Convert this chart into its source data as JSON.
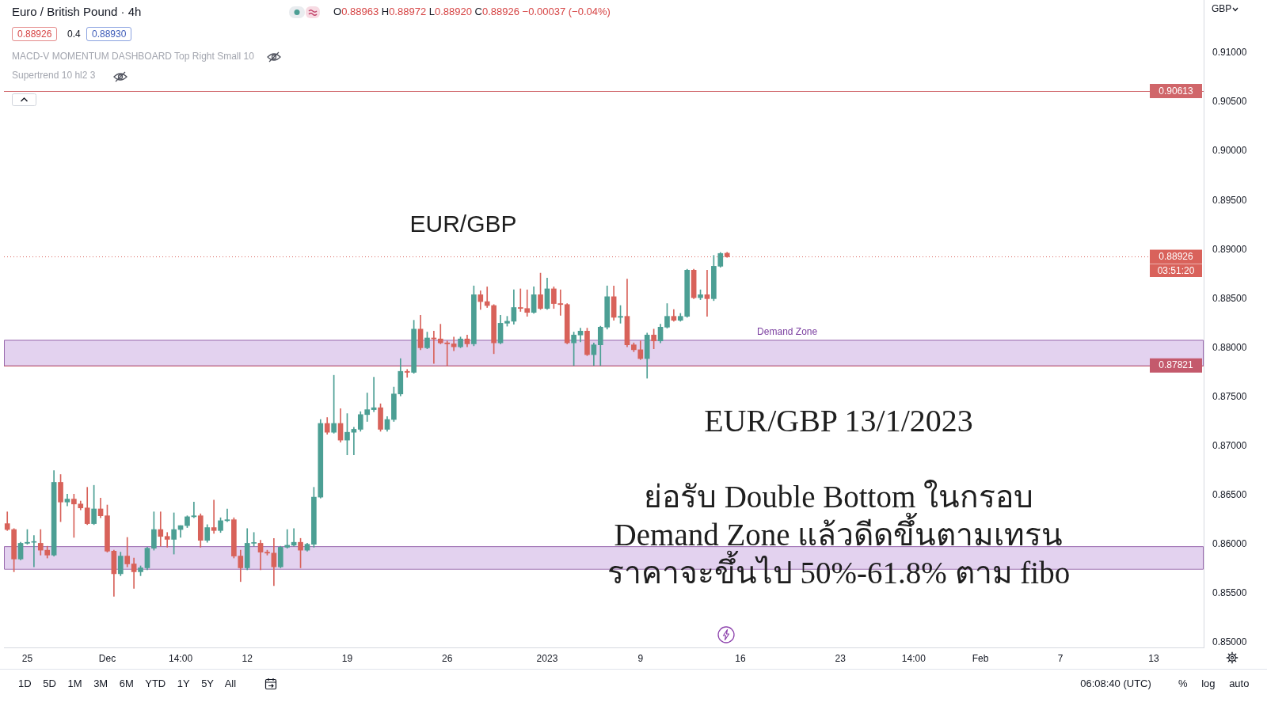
{
  "chart_data": {
    "type": "candlestick",
    "title": "Euro / British Pound · 4h",
    "categories": [
      null,
      null,
      null,
      "25",
      null,
      null,
      null,
      null,
      null,
      null,
      null,
      null,
      null,
      null,
      null,
      "Dec",
      null,
      null,
      null,
      null,
      null,
      null,
      null,
      null,
      null,
      null,
      "14:00",
      null,
      null,
      null,
      null,
      null,
      null,
      null,
      null,
      null,
      "12",
      null,
      null,
      null,
      null,
      null,
      null,
      null,
      null,
      null,
      null,
      null,
      null,
      null,
      null,
      "19",
      null,
      null,
      null,
      null,
      null,
      null,
      null,
      null,
      null,
      null,
      null,
      null,
      null,
      null,
      "26",
      null,
      null,
      null,
      null,
      null,
      null,
      null,
      null,
      null,
      null,
      null,
      null,
      null,
      null,
      "2023",
      null,
      null,
      null,
      null,
      null,
      null,
      null,
      null,
      null,
      null,
      null,
      null,
      null,
      "9",
      null,
      null,
      null,
      null,
      null,
      null,
      null,
      null,
      null,
      null,
      null,
      null,
      null,
      null,
      "16",
      null,
      null,
      null,
      null,
      null,
      null,
      null,
      null,
      null,
      null,
      null,
      null,
      null,
      null,
      "23",
      null,
      null,
      null,
      null,
      null,
      null,
      null,
      null,
      null,
      null,
      "14:00",
      null,
      null,
      null,
      null,
      null,
      null,
      null,
      null,
      null,
      "Feb",
      null,
      null,
      null,
      null,
      null,
      null,
      null,
      null,
      null,
      null,
      null,
      "7",
      null,
      null,
      null,
      null,
      null,
      null,
      null,
      null,
      null,
      null,
      null,
      null,
      null,
      "13",
      null,
      null,
      null,
      null,
      null,
      null,
      null
    ],
    "ohlc": [
      [
        0.8621,
        0.8633,
        0.8614,
        0.8615
      ],
      [
        0.8615,
        0.8616,
        0.8572,
        0.8585
      ],
      [
        0.8585,
        0.8602,
        0.8584,
        0.8601
      ],
      [
        0.8601,
        0.8615,
        0.86,
        0.8602
      ],
      [
        0.8602,
        0.8609,
        0.8577,
        0.8602
      ],
      [
        0.8601,
        0.8615,
        0.8589,
        0.8594
      ],
      [
        0.8594,
        0.8598,
        0.8586,
        0.8589
      ],
      [
        0.8589,
        0.8675,
        0.8588,
        0.8663
      ],
      [
        0.8663,
        0.8671,
        0.8623,
        0.8643
      ],
      [
        0.8643,
        0.8651,
        0.8639,
        0.8646
      ],
      [
        0.8646,
        0.8651,
        0.8607,
        0.8641
      ],
      [
        0.8641,
        0.8644,
        0.8635,
        0.8637
      ],
      [
        0.8637,
        0.8658,
        0.862,
        0.8621
      ],
      [
        0.8621,
        0.866,
        0.862,
        0.8636
      ],
      [
        0.8636,
        0.8647,
        0.8627,
        0.8629
      ],
      [
        0.8629,
        0.864,
        0.8592,
        0.8593
      ],
      [
        0.8593,
        0.8594,
        0.8547,
        0.857
      ],
      [
        0.857,
        0.8592,
        0.8568,
        0.8588
      ],
      [
        0.8588,
        0.8607,
        0.8577,
        0.858
      ],
      [
        0.858,
        0.8586,
        0.8555,
        0.8572
      ],
      [
        0.8572,
        0.8578,
        0.8568,
        0.8576
      ],
      [
        0.8576,
        0.8597,
        0.8574,
        0.8596
      ],
      [
        0.8596,
        0.8633,
        0.8594,
        0.8615
      ],
      [
        0.8615,
        0.8633,
        0.8598,
        0.8608
      ],
      [
        0.8608,
        0.8612,
        0.8597,
        0.8605
      ],
      [
        0.8605,
        0.8632,
        0.859,
        0.8615
      ],
      [
        0.8615,
        0.8619,
        0.8607,
        0.8619
      ],
      [
        0.8619,
        0.8629,
        0.8617,
        0.8628
      ],
      [
        0.8628,
        0.8643,
        0.8627,
        0.8629
      ],
      [
        0.8629,
        0.8631,
        0.8597,
        0.8604
      ],
      [
        0.8604,
        0.862,
        0.8602,
        0.8617
      ],
      [
        0.8617,
        0.8645,
        0.8611,
        0.8614
      ],
      [
        0.8614,
        0.8627,
        0.8612,
        0.8624
      ],
      [
        0.8624,
        0.8636,
        0.8623,
        0.8625
      ],
      [
        0.8625,
        0.8627,
        0.8586,
        0.8588
      ],
      [
        0.8588,
        0.8594,
        0.8562,
        0.8576
      ],
      [
        0.8576,
        0.8616,
        0.8574,
        0.8601
      ],
      [
        0.8601,
        0.8612,
        0.8598,
        0.8601
      ],
      [
        0.8601,
        0.8604,
        0.8574,
        0.8592
      ],
      [
        0.8592,
        0.8594,
        0.8589,
        0.8591
      ],
      [
        0.8591,
        0.8606,
        0.8558,
        0.8577
      ],
      [
        0.8577,
        0.8598,
        0.8576,
        0.8597
      ],
      [
        0.8597,
        0.8615,
        0.8596,
        0.8599
      ],
      [
        0.8599,
        0.8616,
        0.8598,
        0.8602
      ],
      [
        0.8602,
        0.8606,
        0.8576,
        0.8594
      ],
      [
        0.8594,
        0.8601,
        0.8593,
        0.86
      ],
      [
        0.86,
        0.8658,
        0.8597,
        0.8648
      ],
      [
        0.8648,
        0.8727,
        0.8647,
        0.8723
      ],
      [
        0.8723,
        0.8729,
        0.8712,
        0.8714
      ],
      [
        0.8714,
        0.8772,
        0.8713,
        0.8723
      ],
      [
        0.8723,
        0.8738,
        0.8704,
        0.8706
      ],
      [
        0.8706,
        0.8733,
        0.8691,
        0.8714
      ],
      [
        0.8714,
        0.8719,
        0.8691,
        0.8717
      ],
      [
        0.8717,
        0.8735,
        0.8715,
        0.8732
      ],
      [
        0.8732,
        0.8754,
        0.8725,
        0.8737
      ],
      [
        0.8737,
        0.877,
        0.8735,
        0.8739
      ],
      [
        0.8739,
        0.8743,
        0.8715,
        0.8717
      ],
      [
        0.8717,
        0.873,
        0.8715,
        0.8727
      ],
      [
        0.8727,
        0.876,
        0.8725,
        0.8753
      ],
      [
        0.8753,
        0.8789,
        0.8751,
        0.8776
      ],
      [
        0.8776,
        0.8778,
        0.877,
        0.8775
      ],
      [
        0.8775,
        0.8828,
        0.8774,
        0.8819
      ],
      [
        0.8819,
        0.8833,
        0.8798,
        0.88
      ],
      [
        0.88,
        0.8816,
        0.8799,
        0.881
      ],
      [
        0.881,
        0.8817,
        0.8784,
        0.8809
      ],
      [
        0.8809,
        0.8824,
        0.8804,
        0.8805
      ],
      [
        0.8805,
        0.8807,
        0.8782,
        0.8804
      ],
      [
        0.8804,
        0.8811,
        0.8797,
        0.8801
      ],
      [
        0.8801,
        0.8811,
        0.88,
        0.8809
      ],
      [
        0.8809,
        0.8813,
        0.8801,
        0.8804
      ],
      [
        0.8804,
        0.8863,
        0.8802,
        0.8854
      ],
      [
        0.8854,
        0.8858,
        0.8839,
        0.8847
      ],
      [
        0.8847,
        0.8862,
        0.8841,
        0.8843
      ],
      [
        0.8843,
        0.8844,
        0.8794,
        0.8805
      ],
      [
        0.8805,
        0.8833,
        0.8804,
        0.8825
      ],
      [
        0.8825,
        0.8832,
        0.8822,
        0.8827
      ],
      [
        0.8827,
        0.8859,
        0.8824,
        0.8841
      ],
      [
        0.8841,
        0.886,
        0.8837,
        0.884
      ],
      [
        0.884,
        0.8859,
        0.8832,
        0.8836
      ],
      [
        0.8836,
        0.8862,
        0.8835,
        0.8854
      ],
      [
        0.8854,
        0.8876,
        0.8839,
        0.884
      ],
      [
        0.884,
        0.8871,
        0.8839,
        0.886
      ],
      [
        0.886,
        0.8862,
        0.884,
        0.8845
      ],
      [
        0.8845,
        0.8859,
        0.8833,
        0.8844
      ],
      [
        0.8844,
        0.8845,
        0.8804,
        0.8805
      ],
      [
        0.8805,
        0.8816,
        0.8782,
        0.8813
      ],
      [
        0.8813,
        0.882,
        0.8806,
        0.8817
      ],
      [
        0.8817,
        0.882,
        0.8792,
        0.8793
      ],
      [
        0.8793,
        0.8805,
        0.8782,
        0.8803
      ],
      [
        0.8803,
        0.8822,
        0.8782,
        0.8821
      ],
      [
        0.8821,
        0.8863,
        0.8819,
        0.8852
      ],
      [
        0.8852,
        0.8863,
        0.8828,
        0.8831
      ],
      [
        0.8831,
        0.8843,
        0.8825,
        0.8832
      ],
      [
        0.8832,
        0.887,
        0.8801,
        0.8803
      ],
      [
        0.8803,
        0.8805,
        0.8796,
        0.8798
      ],
      [
        0.8798,
        0.8807,
        0.8788,
        0.8789
      ],
      [
        0.8789,
        0.8815,
        0.8769,
        0.8813
      ],
      [
        0.8813,
        0.8819,
        0.8799,
        0.8807
      ],
      [
        0.8807,
        0.8824,
        0.8805,
        0.8821
      ],
      [
        0.8821,
        0.8845,
        0.882,
        0.8832
      ],
      [
        0.8832,
        0.8839,
        0.8827,
        0.8828
      ],
      [
        0.8828,
        0.8835,
        0.8827,
        0.8832
      ],
      [
        0.8832,
        0.888,
        0.8831,
        0.8879
      ],
      [
        0.8879,
        0.888,
        0.885,
        0.8851
      ],
      [
        0.8851,
        0.8859,
        0.8849,
        0.8854
      ],
      [
        0.8854,
        0.8879,
        0.8832,
        0.885
      ],
      [
        0.885,
        0.8894,
        0.8848,
        0.8883
      ],
      [
        0.8883,
        0.8897,
        0.8882,
        0.8896
      ],
      [
        0.88963,
        0.88972,
        0.8892,
        0.88926
      ],
      null,
      null,
      null,
      null,
      null,
      null,
      null,
      null,
      null,
      null,
      null,
      null,
      null,
      null,
      null,
      null,
      null,
      null,
      null,
      null,
      null,
      null,
      null,
      null,
      null,
      null,
      null,
      null,
      null,
      null,
      null,
      null,
      null,
      null,
      null,
      null,
      null,
      null,
      null,
      null,
      null,
      null,
      null,
      null,
      null,
      null,
      null,
      null,
      null,
      null,
      null,
      null,
      null,
      null,
      null,
      null,
      null,
      null,
      null,
      null,
      null,
      null,
      null,
      null,
      null,
      null,
      null,
      null,
      null,
      null,
      null
    ],
    "colors": [
      "#d8625a",
      "#d8625a",
      "#4c9f94",
      "#4c9f94",
      "#4c9f94",
      "#d8625a",
      "#d8625a",
      "#4c9f94",
      "#d8625a",
      "#4c9f94",
      "#d8625a",
      "#d8625a",
      "#d8625a",
      "#4c9f94",
      "#d8625a",
      "#d8625a",
      "#d8625a",
      "#4c9f94",
      "#d8625a",
      "#d8625a",
      "#4c9f94",
      "#4c9f94",
      "#4c9f94",
      "#d8625a",
      "#d8625a",
      "#4c9f94",
      "#4c9f94",
      "#4c9f94",
      "#4c9f94",
      "#d8625a",
      "#4c9f94",
      "#d8625a",
      "#4c9f94",
      "#4c9f94",
      "#d8625a",
      "#d8625a",
      "#4c9f94",
      "#4c9f94",
      "#d8625a",
      "#d8625a",
      "#d8625a",
      "#4c9f94",
      "#4c9f94",
      "#4c9f94",
      "#d8625a",
      "#4c9f94",
      "#4c9f94",
      "#4c9f94",
      "#d8625a",
      "#4c9f94",
      "#d8625a",
      "#4c9f94",
      "#4c9f94",
      "#4c9f94",
      "#4c9f94",
      "#4c9f94",
      "#d8625a",
      "#4c9f94",
      "#4c9f94",
      "#4c9f94",
      "#d8625a",
      "#4c9f94",
      "#d8625a",
      "#4c9f94",
      "#d8625a",
      "#d8625a",
      "#d8625a",
      "#d8625a",
      "#4c9f94",
      "#d8625a",
      "#4c9f94",
      "#d8625a",
      "#d8625a",
      "#d8625a",
      "#4c9f94",
      "#4c9f94",
      "#4c9f94",
      "#d8625a",
      "#d8625a",
      "#4c9f94",
      "#d8625a",
      "#4c9f94",
      "#d8625a",
      "#d8625a",
      "#d8625a",
      "#4c9f94",
      "#4c9f94",
      "#d8625a",
      "#4c9f94",
      "#4c9f94",
      "#4c9f94",
      "#d8625a",
      "#4c9f94",
      "#d8625a",
      "#d8625a",
      "#d8625a",
      "#4c9f94",
      "#d8625a",
      "#4c9f94",
      "#4c9f94",
      "#d8625a",
      "#4c9f94",
      "#4c9f94",
      "#d8625a",
      "#4c9f94",
      "#d8625a",
      "#4c9f94",
      "#4c9f94",
      "#d8625a",
      null,
      null,
      null,
      null,
      null,
      null,
      null,
      null,
      null,
      null,
      null,
      null,
      null,
      null,
      null,
      null,
      null,
      null,
      null,
      null,
      null,
      null,
      null,
      null,
      null,
      null,
      null,
      null,
      null,
      null,
      null,
      null,
      null,
      null,
      null,
      null,
      null,
      null,
      null,
      null,
      null,
      null,
      null,
      null,
      null,
      null,
      null,
      null,
      null,
      null,
      null,
      null,
      null,
      null,
      null,
      null,
      null,
      null,
      null,
      null,
      null,
      null,
      null,
      null,
      null,
      null,
      null,
      null,
      null,
      null,
      null
    ],
    "ylim": [
      0.8495,
      0.9154
    ],
    "yticks": [
      {
        "value": 0.85,
        "label": "0.85000"
      },
      {
        "value": 0.855,
        "label": "0.85500"
      },
      {
        "value": 0.86,
        "label": "0.86000"
      },
      {
        "value": 0.865,
        "label": "0.86500"
      },
      {
        "value": 0.87,
        "label": "0.87000"
      },
      {
        "value": 0.875,
        "label": "0.87500"
      },
      {
        "value": 0.88,
        "label": "0.88000"
      },
      {
        "value": 0.885,
        "label": "0.88500"
      },
      {
        "value": 0.89,
        "label": "0.89000"
      },
      {
        "value": 0.895,
        "label": "0.89500"
      },
      {
        "value": 0.9,
        "label": "0.90000"
      },
      {
        "value": 0.905,
        "label": "0.90500"
      },
      {
        "value": 0.91,
        "label": "0.91000"
      }
    ],
    "ref_lines": [
      {
        "axis": "y",
        "value": 0.90613,
        "label": "0.90613",
        "color": "#d0666a"
      },
      {
        "axis": "y",
        "value": 0.87821,
        "label": "0.87821",
        "color": "#c45a6c"
      },
      {
        "axis": "y",
        "value": 0.88926,
        "label": "0.88926",
        "color": "#d9625b",
        "line_style": "dotted"
      }
    ],
    "bands": [
      {
        "axis": "y",
        "from": 0.87821,
        "to": 0.8808,
        "label": "Demand Zone",
        "color": "#e3d2ef"
      },
      {
        "axis": "y",
        "from": 0.8575,
        "to": 0.8598,
        "color": "#e3d2ef"
      }
    ],
    "annotations": [
      "O0.88963 H0.88972 L0.88920 C0.88926 −0.00037 (−0.04%)",
      "0.88926",
      "0.4",
      "0.88930",
      "MACD-V MOMENTUM DASHBOARD Top Right Small 10",
      "Supertrend 10 hl2 3",
      "EUR/GBP",
      "EUR/GBP 13/1/2023",
      "ย่อรับ Double Bottom ในกรอบ\nDemand Zone แล้วดีดขึ้นตามเทรน\nราคาจะขึ้นไป 50%-61.8% ตาม fibo",
      "03:51:20",
      "GBP",
      "1D 5D 1M 3M 6M YTD 1Y 5Y All",
      "06:08:40 (UTC)",
      "% log auto"
    ]
  }
}
